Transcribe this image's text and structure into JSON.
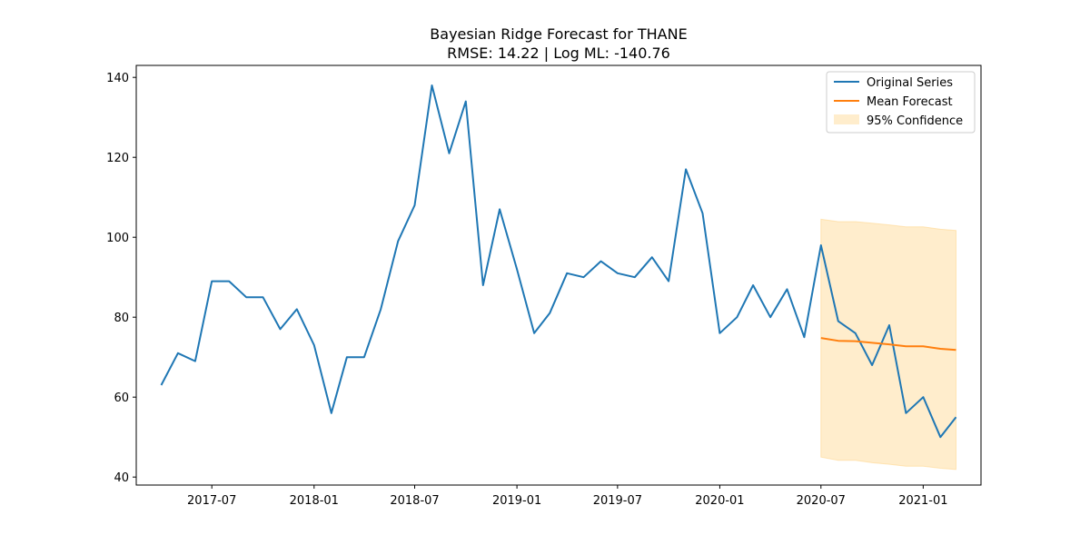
{
  "chart_data": {
    "type": "line",
    "title": "Bayesian Ridge Forecast for THANE",
    "subtitle": "RMSE: 14.22 | Log ML: -140.76",
    "xlabel": "",
    "ylabel": "",
    "ylim": [
      38,
      143
    ],
    "xlim": [
      "2017-02-15",
      "2021-04-15"
    ],
    "yticks": [
      40,
      60,
      80,
      100,
      120,
      140
    ],
    "xticks": [
      "2017-07",
      "2018-01",
      "2018-07",
      "2019-01",
      "2019-07",
      "2020-01",
      "2020-07",
      "2021-01"
    ],
    "grid": false,
    "legend_position": "top-right",
    "colors": {
      "original": "#1f77b4",
      "forecast": "#ff7f0e",
      "confidence": "#ffd27f"
    },
    "series": [
      {
        "name": "Original Series",
        "x": [
          "2017-04",
          "2017-05",
          "2017-06",
          "2017-07",
          "2017-08",
          "2017-09",
          "2017-10",
          "2017-11",
          "2017-12",
          "2018-01",
          "2018-02",
          "2018-03",
          "2018-04",
          "2018-05",
          "2018-06",
          "2018-07",
          "2018-08",
          "2018-09",
          "2018-10",
          "2018-11",
          "2018-12",
          "2019-01",
          "2019-02",
          "2019-03",
          "2019-04",
          "2019-05",
          "2019-06",
          "2019-07",
          "2019-08",
          "2019-09",
          "2019-10",
          "2019-11",
          "2019-12",
          "2020-01",
          "2020-02",
          "2020-03",
          "2020-04",
          "2020-05",
          "2020-06",
          "2020-07",
          "2020-08",
          "2020-09",
          "2020-10",
          "2020-11",
          "2020-12",
          "2021-01",
          "2021-02",
          "2021-03"
        ],
        "values": [
          63,
          71,
          69,
          89,
          89,
          85,
          85,
          77,
          82,
          73,
          56,
          70,
          70,
          82,
          99,
          108,
          138,
          121,
          134,
          88,
          107,
          92,
          76,
          81,
          91,
          90,
          94,
          91,
          90,
          95,
          89,
          117,
          106,
          76,
          80,
          88,
          80,
          87,
          75,
          98,
          79,
          76,
          68,
          78,
          56,
          60,
          50,
          55
        ]
      },
      {
        "name": "Mean Forecast",
        "x": [
          "2020-07",
          "2020-08",
          "2020-09",
          "2020-10",
          "2020-11",
          "2020-12",
          "2021-01",
          "2021-02",
          "2021-03"
        ],
        "values": [
          74.8,
          74.1,
          74.0,
          73.6,
          73.2,
          72.7,
          72.7,
          72.1,
          71.8
        ]
      }
    ],
    "confidence_band": {
      "name": "95% Confidence",
      "x": [
        "2020-07",
        "2020-08",
        "2020-09",
        "2020-10",
        "2020-11",
        "2020-12",
        "2021-01",
        "2021-02",
        "2021-03"
      ],
      "lower": [
        45.0,
        44.2,
        44.2,
        43.6,
        43.2,
        42.7,
        42.7,
        42.2,
        41.9
      ],
      "upper": [
        104.5,
        103.9,
        103.9,
        103.5,
        103.1,
        102.6,
        102.6,
        102.0,
        101.7
      ]
    }
  }
}
